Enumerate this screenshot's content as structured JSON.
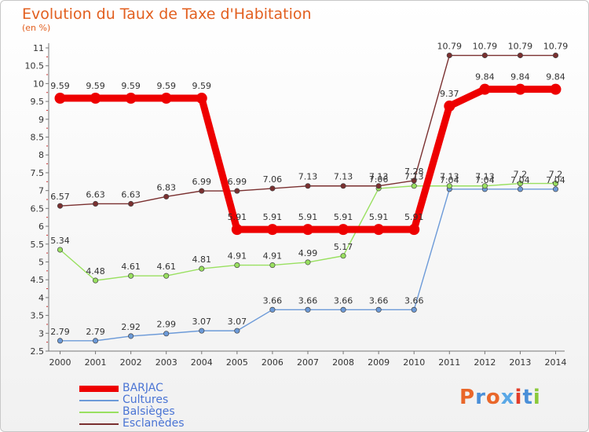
{
  "header": {
    "title": "Evolution du Taux de Taxe d'Habitation",
    "subtitle": "(en %)"
  },
  "logo": {
    "text": "Proxiti"
  },
  "chart_data": {
    "type": "line",
    "title": "Evolution du Taux de Taxe d'Habitation",
    "ylabel": "(en %)",
    "x": [
      2000,
      2001,
      2002,
      2003,
      2004,
      2005,
      2006,
      2007,
      2008,
      2009,
      2010,
      2011,
      2012,
      2013,
      2014
    ],
    "ylim": [
      2.5,
      11
    ],
    "yticks": [
      "2.5",
      "3",
      "3.5",
      "4",
      "4.5",
      "5",
      "5.5",
      "6",
      "6.5",
      "7",
      "7.5",
      "8",
      "8.5",
      "9",
      "9.5",
      "10",
      "10.5",
      "11"
    ],
    "grid": false,
    "legend": "bottom-left",
    "series": [
      {
        "name": "BARJAC",
        "color": "#ee0000",
        "values": [
          9.59,
          9.59,
          9.59,
          9.59,
          9.59,
          5.91,
          5.91,
          5.91,
          5.91,
          5.91,
          5.91,
          9.37,
          9.84,
          9.84,
          9.84
        ],
        "labels": [
          "9.59",
          "9.59",
          "9.59",
          "9.59",
          "9.59",
          "5.91",
          "5.91",
          "5.91",
          "5.91",
          "5.91",
          "5.91",
          "9.37",
          "9.84",
          "9.84",
          "9.84"
        ]
      },
      {
        "name": "Cultures",
        "color": "#6c9ad8",
        "values": [
          2.79,
          2.79,
          2.92,
          2.99,
          3.07,
          3.07,
          3.66,
          3.66,
          3.66,
          3.66,
          3.66,
          7.04,
          7.04,
          7.04,
          7.04
        ],
        "labels": [
          "2.79",
          "2.79",
          "2.92",
          "2.99",
          "3.07",
          "3.07",
          "3.66",
          "3.66",
          "3.66",
          "3.66",
          "3.66",
          "7.04",
          "7.04",
          "7.04",
          "7.04"
        ]
      },
      {
        "name": "Balsièges",
        "color": "#99e060",
        "values": [
          5.34,
          4.48,
          4.61,
          4.61,
          4.81,
          4.91,
          4.91,
          4.99,
          5.17,
          7.06,
          7.13,
          7.13,
          7.13,
          7.2,
          7.2
        ],
        "labels": [
          "5.34",
          "4.48",
          "4.61",
          "4.61",
          "4.81",
          "4.91",
          "4.91",
          "4.99",
          "5.17",
          "7.06",
          "7.13",
          "7.13",
          "7.13",
          "7.2",
          "7.2"
        ]
      },
      {
        "name": "Esclanèdes",
        "color": "#7a3030",
        "values": [
          6.57,
          6.63,
          6.63,
          6.83,
          6.99,
          6.99,
          7.06,
          7.13,
          7.13,
          7.13,
          7.28,
          10.79,
          10.79,
          10.79,
          10.79
        ],
        "labels": [
          "6.57",
          "6.63",
          "6.63",
          "6.83",
          "6.99",
          "6.99",
          "7.06",
          "7.13",
          "7.13",
          "7.13",
          "7.28",
          "10.79",
          "10.79",
          "10.79",
          "10.79"
        ]
      }
    ]
  }
}
